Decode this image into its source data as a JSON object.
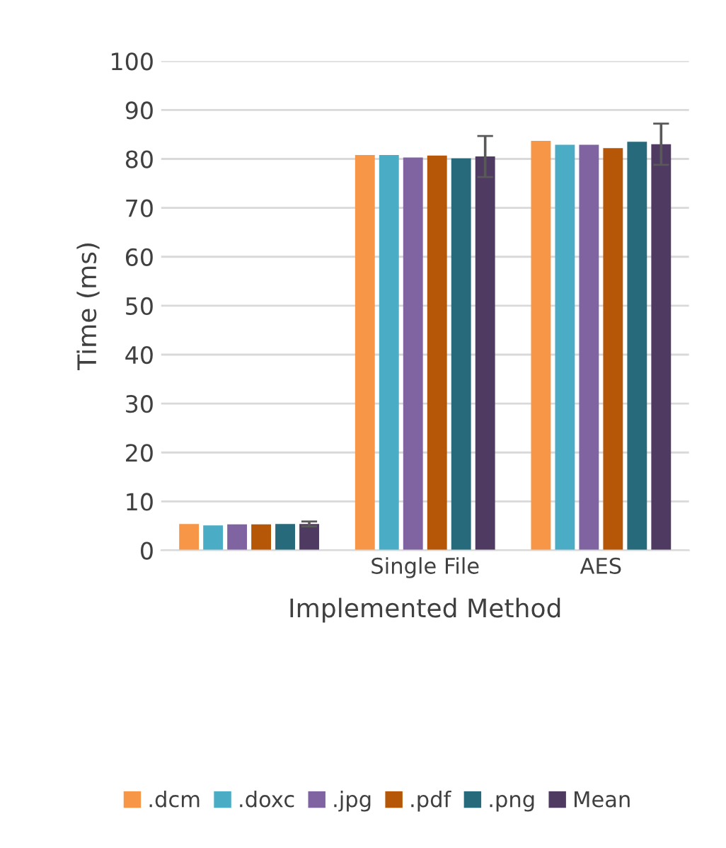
{
  "chart_data": {
    "type": "bar",
    "xlabel": "Implemented Method",
    "ylabel": "Time (ms)",
    "categories": [
      null,
      "Single File",
      "AES"
    ],
    "series": [
      {
        "name": ".dcm",
        "color": "#f79646",
        "values": [
          5.4,
          80.8,
          83.7
        ]
      },
      {
        "name": ".doxc",
        "color": "#4bacc6",
        "values": [
          5.1,
          80.8,
          82.9
        ]
      },
      {
        "name": ".jpg",
        "color": "#8064a2",
        "values": [
          5.3,
          80.3,
          82.9
        ]
      },
      {
        "name": ".pdf",
        "color": "#b65708",
        "values": [
          5.3,
          80.7,
          82.2
        ]
      },
      {
        "name": ".png",
        "color": "#276a7c",
        "values": [
          5.4,
          80.1,
          83.5
        ]
      },
      {
        "name": "Mean",
        "color": "#4f3a62",
        "values": [
          5.4,
          80.5,
          83.0
        ],
        "errors": [
          0.5,
          4.2,
          4.2
        ]
      }
    ],
    "ylim": [
      0,
      100
    ],
    "yticks": [
      0,
      10,
      20,
      30,
      40,
      50,
      60,
      70,
      80,
      90,
      100
    ],
    "grid": "y",
    "legend": "bottom"
  }
}
